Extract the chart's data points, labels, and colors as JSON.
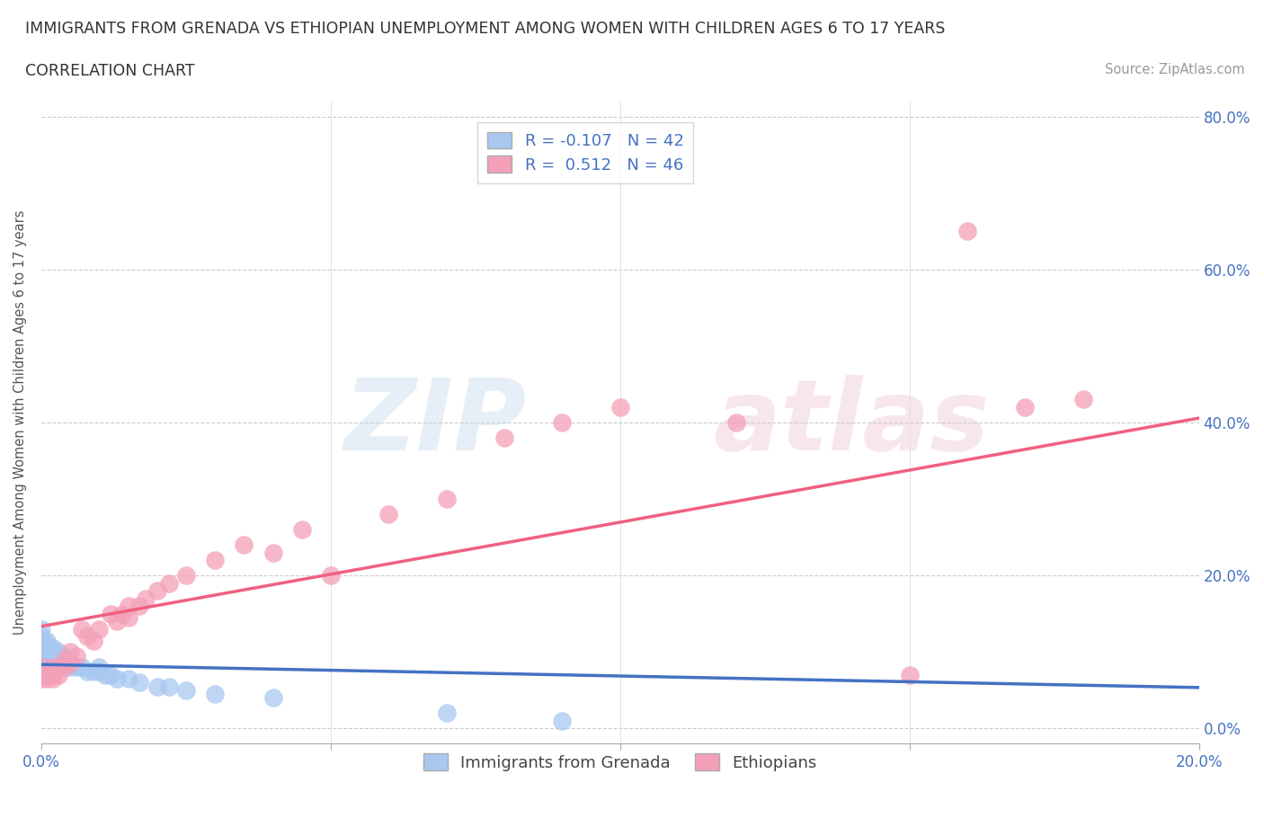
{
  "title": "IMMIGRANTS FROM GRENADA VS ETHIOPIAN UNEMPLOYMENT AMONG WOMEN WITH CHILDREN AGES 6 TO 17 YEARS",
  "subtitle": "CORRELATION CHART",
  "source": "Source: ZipAtlas.com",
  "ylabel": "Unemployment Among Women with Children Ages 6 to 17 years",
  "xmin": 0.0,
  "xmax": 0.2,
  "ymin": -0.02,
  "ymax": 0.82,
  "yticks": [
    0.0,
    0.2,
    0.4,
    0.6,
    0.8
  ],
  "xticks": [
    0.0,
    0.05,
    0.1,
    0.15,
    0.2
  ],
  "r_grenada": -0.107,
  "n_grenada": 42,
  "r_ethiopian": 0.512,
  "n_ethiopian": 46,
  "color_grenada": "#a8c8f0",
  "color_ethiopian": "#f4a0b8",
  "line_color_grenada": "#4472c4",
  "line_color_ethiopian": "#f06080",
  "grenada_x": [
    0.0,
    0.0,
    0.0,
    0.0,
    0.0,
    0.0,
    0.0,
    0.001,
    0.001,
    0.001,
    0.001,
    0.001,
    0.002,
    0.002,
    0.002,
    0.002,
    0.003,
    0.003,
    0.003,
    0.004,
    0.004,
    0.004,
    0.005,
    0.005,
    0.006,
    0.007,
    0.008,
    0.009,
    0.01,
    0.01,
    0.011,
    0.012,
    0.013,
    0.015,
    0.017,
    0.02,
    0.022,
    0.025,
    0.03,
    0.04,
    0.07,
    0.09
  ],
  "grenada_y": [
    0.13,
    0.12,
    0.115,
    0.11,
    0.1,
    0.095,
    0.09,
    0.115,
    0.11,
    0.105,
    0.1,
    0.09,
    0.105,
    0.1,
    0.09,
    0.085,
    0.1,
    0.095,
    0.085,
    0.095,
    0.09,
    0.085,
    0.085,
    0.08,
    0.08,
    0.08,
    0.075,
    0.075,
    0.08,
    0.075,
    0.07,
    0.07,
    0.065,
    0.065,
    0.06,
    0.055,
    0.055,
    0.05,
    0.045,
    0.04,
    0.02,
    0.01
  ],
  "ethiopian_x": [
    0.0,
    0.0,
    0.0,
    0.0,
    0.001,
    0.001,
    0.001,
    0.002,
    0.002,
    0.002,
    0.003,
    0.003,
    0.004,
    0.004,
    0.005,
    0.005,
    0.006,
    0.007,
    0.008,
    0.009,
    0.01,
    0.012,
    0.013,
    0.014,
    0.015,
    0.015,
    0.017,
    0.018,
    0.02,
    0.022,
    0.025,
    0.03,
    0.035,
    0.04,
    0.045,
    0.05,
    0.06,
    0.07,
    0.08,
    0.09,
    0.1,
    0.12,
    0.15,
    0.16,
    0.17,
    0.18
  ],
  "ethiopian_y": [
    0.07,
    0.08,
    0.075,
    0.065,
    0.07,
    0.075,
    0.065,
    0.08,
    0.07,
    0.065,
    0.08,
    0.07,
    0.09,
    0.08,
    0.1,
    0.085,
    0.095,
    0.13,
    0.12,
    0.115,
    0.13,
    0.15,
    0.14,
    0.15,
    0.145,
    0.16,
    0.16,
    0.17,
    0.18,
    0.19,
    0.2,
    0.22,
    0.24,
    0.23,
    0.26,
    0.2,
    0.28,
    0.3,
    0.38,
    0.4,
    0.42,
    0.4,
    0.07,
    0.65,
    0.42,
    0.43
  ],
  "legend_r1": "R = -0.107   N = 42",
  "legend_r2": "R =  0.512   N = 46",
  "legend_label1": "Immigrants from Grenada",
  "legend_label2": "Ethiopians"
}
